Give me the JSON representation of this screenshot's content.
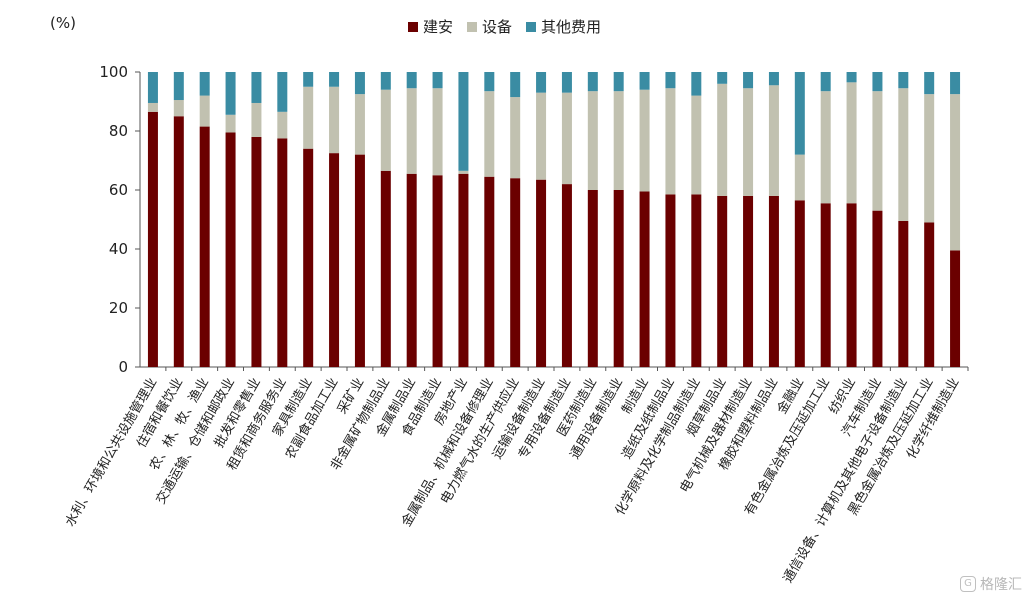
{
  "chart_data": {
    "type": "bar",
    "stacked": true,
    "unit_label": "(%)",
    "ylim": [
      0,
      100
    ],
    "yticks": [
      0,
      20,
      40,
      60,
      80,
      100
    ],
    "grid": false,
    "legend_position": "top",
    "categories": [
      "水利、环境和公共设施管理业",
      "住宿和餐饮业",
      "农、林、牧、渔业",
      "交通运输、仓储和邮政业",
      "批发和零售业",
      "租赁和商务服务业",
      "家具制造业",
      "农副食品加工业",
      "采矿业",
      "非金属矿物制品业",
      "金属制品业",
      "食品制造业",
      "房地产业",
      "金属制品、机械和设备修理业",
      "电力燃气水的生产供应业",
      "运输设备制造业",
      "专用设备制造业",
      "医药制造业",
      "通用设备制造业",
      "制造业",
      "造纸及纸制品业",
      "化学原料及化学制品制造业",
      "烟草制品业",
      "电气机械及器材制造业",
      "橡胶和塑料制品业",
      "金融业",
      "有色金属冶炼及压延加工业",
      "纺织业",
      "汽车制造业",
      "通信设备、计算机及其他电子设备制造业",
      "黑色金属冶炼及压延加工业",
      "化学纤维制造业"
    ],
    "series": [
      {
        "name": "建安",
        "color": "#6b0000",
        "values": [
          86.5,
          85,
          81.5,
          79.5,
          78,
          77.5,
          74,
          72.5,
          72,
          66.5,
          65.5,
          65,
          65.5,
          64.5,
          64,
          63.5,
          62,
          60,
          60,
          59.5,
          58.5,
          58.5,
          58,
          58,
          58,
          56.5,
          55.5,
          55.5,
          53,
          49.5,
          49,
          39.5
        ]
      },
      {
        "name": "设备",
        "color": "#c1c1b0",
        "values": [
          3,
          5.5,
          10.5,
          6,
          11.5,
          9,
          21,
          22.5,
          20.5,
          27.5,
          29,
          29.5,
          1,
          29,
          27.5,
          29.5,
          31,
          33.5,
          33.5,
          34.5,
          36,
          33.5,
          38,
          36.5,
          37.5,
          15.5,
          38,
          41,
          40.5,
          45,
          43.5,
          53
        ]
      },
      {
        "name": "其他费用",
        "color": "#3a8ca3",
        "values": [
          10.5,
          9.5,
          8,
          14.5,
          10.5,
          13.5,
          5,
          5,
          7.5,
          6,
          5.5,
          5.5,
          33.5,
          6.5,
          8.5,
          7,
          7,
          6.5,
          6.5,
          6,
          5.5,
          8,
          4,
          5.5,
          4.5,
          28,
          6.5,
          3.5,
          6.5,
          5.5,
          7.5,
          7.5
        ]
      }
    ]
  },
  "legend": {
    "items": [
      {
        "label": "建安",
        "color": "#6b0000"
      },
      {
        "label": "设备",
        "color": "#c1c1b0"
      },
      {
        "label": "其他费用",
        "color": "#3a8ca3"
      }
    ]
  },
  "watermark": {
    "text": "格隆汇",
    "logo": "G"
  }
}
